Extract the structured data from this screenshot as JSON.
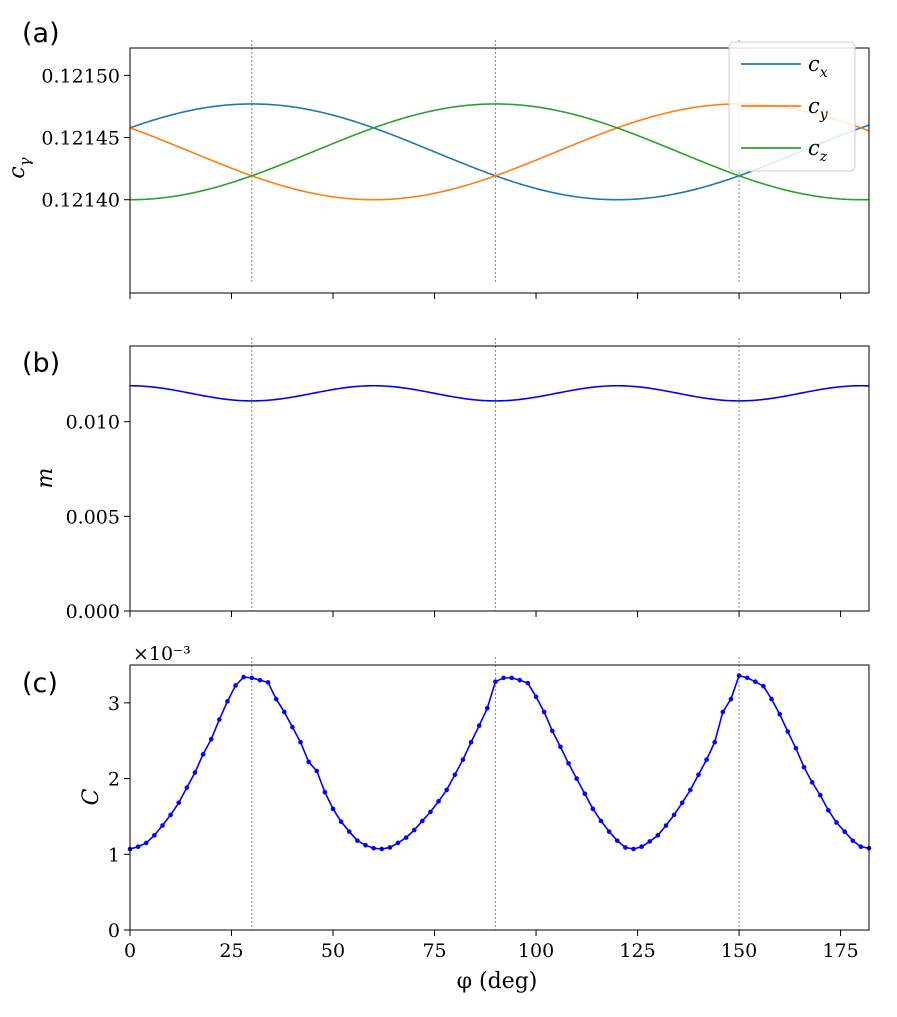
{
  "chart_data": [
    {
      "type": "line",
      "panel_label": "(a)",
      "ylabel": "c_γ",
      "xlim": [
        0,
        182
      ],
      "ylim": [
        0.121325,
        0.121522
      ],
      "yticks": [
        0.1214,
        0.12145,
        0.1215
      ],
      "ytick_labels": [
        "0.12140",
        "0.12145",
        "0.12150"
      ],
      "vlines": [
        30,
        90,
        150
      ],
      "legend_position": "top-right",
      "series": [
        {
          "name": "c_x",
          "color": "#1f77b4",
          "formula": "mean - amp*cos(2*(phi-120) deg)",
          "mean": 0.1214385,
          "amp": 3.85e-05
        },
        {
          "name": "c_y",
          "color": "#ff7f0e",
          "formula": "mean - amp*cos(2*(phi-60) deg)",
          "mean": 0.1214385,
          "amp": 3.85e-05
        },
        {
          "name": "c_z",
          "color": "#2ca02c",
          "formula": "mean - amp*cos(2*phi deg)",
          "mean": 0.1214385,
          "amp": 3.85e-05
        }
      ]
    },
    {
      "type": "line",
      "panel_label": "(b)",
      "ylabel": "m",
      "xlim": [
        0,
        182
      ],
      "ylim": [
        0,
        0.014
      ],
      "yticks": [
        0,
        0.005,
        0.01
      ],
      "ytick_labels": [
        "0.000",
        "0.005",
        "0.010"
      ],
      "vlines": [
        30,
        90,
        150
      ],
      "series": [
        {
          "name": "",
          "color": "#0000ff",
          "mean": 0.0115,
          "amp": 0.0004
        }
      ]
    },
    {
      "type": "line",
      "panel_label": "(c)",
      "ylabel": "C",
      "xlabel": "φ (deg)",
      "scale_label": "×10⁻³",
      "xlim": [
        0,
        182
      ],
      "ylim": [
        0,
        3.5
      ],
      "yticks": [
        0,
        1,
        2,
        3
      ],
      "ytick_labels": [
        "0",
        "1",
        "2",
        "3"
      ],
      "xticks": [
        0,
        25,
        50,
        75,
        100,
        125,
        150,
        175
      ],
      "xtick_labels": [
        "0",
        "25",
        "50",
        "75",
        "100",
        "125",
        "150",
        "175"
      ],
      "vlines": [
        30,
        90,
        150
      ],
      "series": [
        {
          "name": "",
          "color": "#0000ff",
          "markers": true,
          "x": [
            0,
            2,
            4,
            6,
            8,
            10,
            12,
            14,
            16,
            18,
            20,
            22,
            24,
            26,
            28,
            30,
            32,
            34,
            36,
            38,
            40,
            42,
            44,
            46,
            48,
            50,
            52,
            54,
            56,
            58,
            60,
            62,
            64,
            66,
            68,
            70,
            72,
            74,
            76,
            78,
            80,
            82,
            84,
            86,
            88,
            90,
            92,
            94,
            96,
            98,
            100,
            102,
            104,
            106,
            108,
            110,
            112,
            114,
            116,
            118,
            120,
            122,
            124,
            126,
            128,
            130,
            132,
            134,
            136,
            138,
            140,
            142,
            144,
            146,
            148,
            150,
            152,
            154,
            156,
            158,
            160,
            162,
            164,
            166,
            168,
            170,
            172,
            174,
            176,
            178,
            180,
            182
          ],
          "values": [
            1.07,
            1.1,
            1.15,
            1.25,
            1.38,
            1.52,
            1.68,
            1.88,
            2.08,
            2.32,
            2.52,
            2.78,
            3.02,
            3.23,
            3.34,
            3.33,
            3.3,
            3.27,
            3.05,
            2.88,
            2.68,
            2.48,
            2.22,
            2.1,
            1.82,
            1.6,
            1.43,
            1.3,
            1.18,
            1.12,
            1.08,
            1.07,
            1.09,
            1.15,
            1.22,
            1.32,
            1.44,
            1.56,
            1.7,
            1.85,
            2.05,
            2.25,
            2.48,
            2.7,
            2.93,
            3.28,
            3.33,
            3.33,
            3.3,
            3.26,
            3.08,
            2.88,
            2.63,
            2.42,
            2.2,
            2.0,
            1.8,
            1.6,
            1.44,
            1.3,
            1.18,
            1.09,
            1.07,
            1.1,
            1.17,
            1.25,
            1.38,
            1.52,
            1.68,
            1.85,
            2.05,
            2.25,
            2.48,
            2.88,
            3.05,
            3.36,
            3.33,
            3.28,
            3.22,
            3.05,
            2.85,
            2.62,
            2.4,
            2.15,
            1.95,
            1.78,
            1.58,
            1.42,
            1.3,
            1.18,
            1.1,
            1.08
          ]
        }
      ]
    }
  ]
}
